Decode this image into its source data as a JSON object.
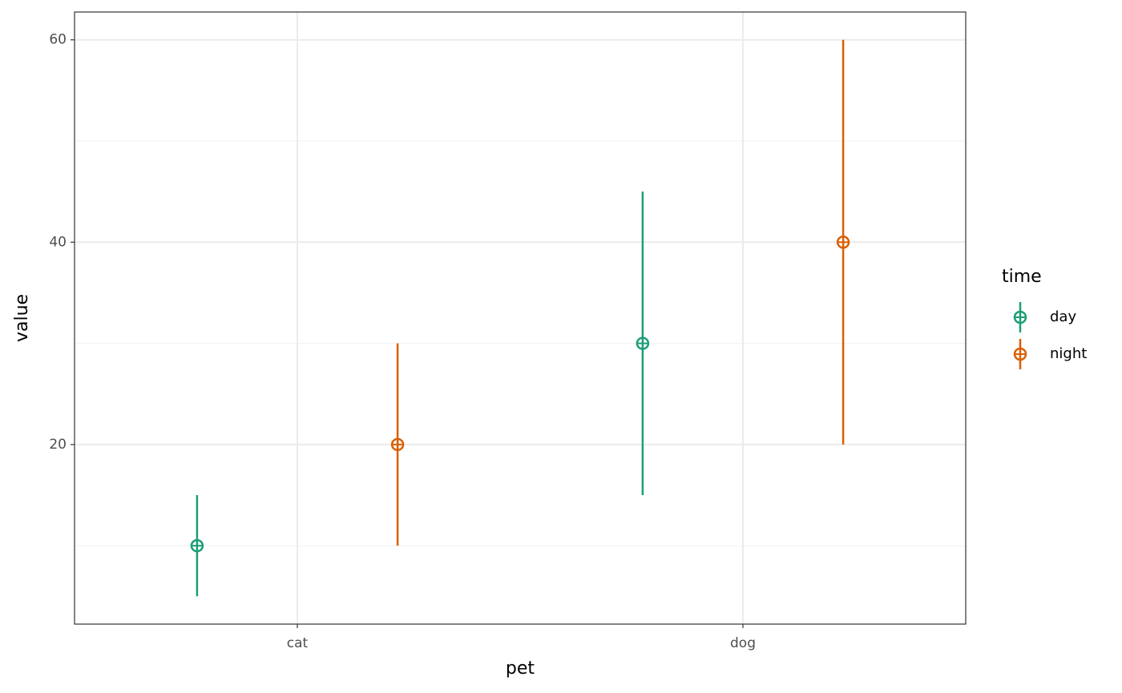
{
  "chart_data": {
    "type": "pointrange",
    "x_label": "pet",
    "y_label": "value",
    "categories": [
      "cat",
      "dog"
    ],
    "legend_title": "time",
    "series": [
      {
        "name": "day",
        "color": "#1b9e77",
        "values": [
          10,
          30
        ],
        "lower": [
          5,
          15
        ],
        "upper": [
          15,
          45
        ]
      },
      {
        "name": "night",
        "color": "#d95f02",
        "values": [
          20,
          40
        ],
        "lower": [
          10,
          20
        ],
        "upper": [
          30,
          60
        ]
      }
    ],
    "ylim": [
      2.25,
      62.75
    ],
    "yticks": [
      20,
      40,
      60
    ],
    "grid": true,
    "legend": "right"
  }
}
